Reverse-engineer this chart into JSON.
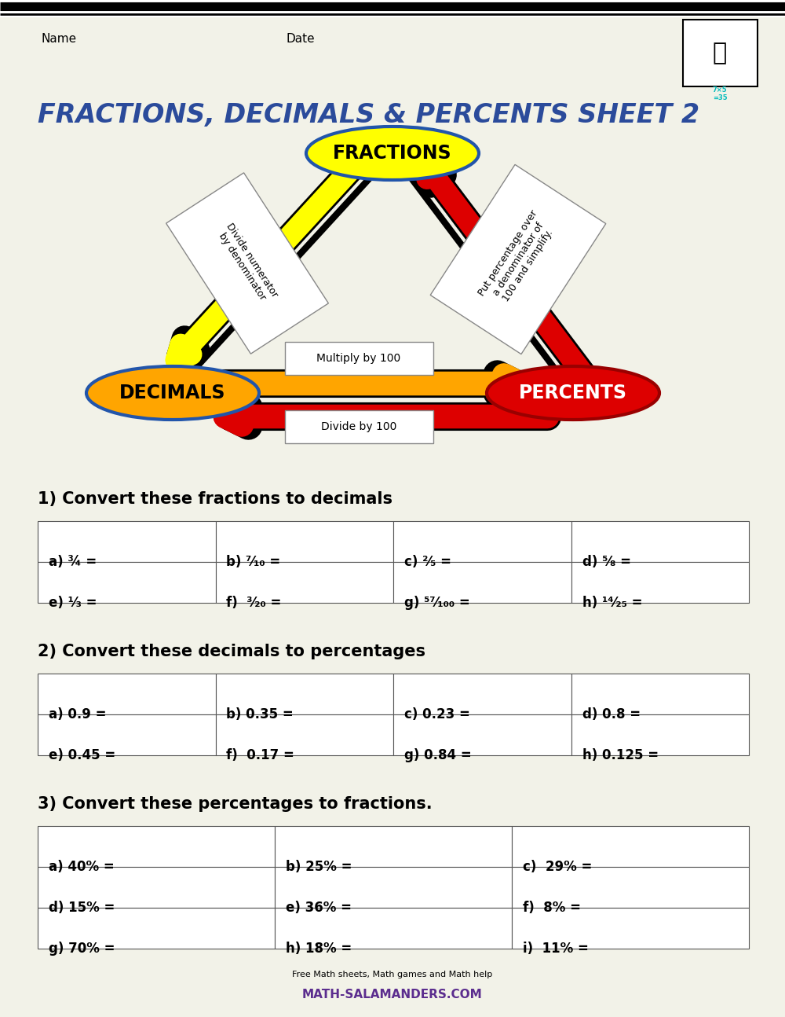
{
  "title": "FRACTIONS, DECIMALS & PERCENTS SHEET 2",
  "title_color": "#2B4B9B",
  "bg_color": "#F2F2E8",
  "name_label": "Name",
  "date_label": "Date",
  "section1_title": "1) Convert these fractions to decimals",
  "section1_rows": [
    [
      "a) ¾ =",
      "b) ⁷⁄₁₀ =",
      "c) ²⁄₅ =",
      "d) ⁵⁄₈ ="
    ],
    [
      "e) ¹⁄₃ =",
      "f)  ³⁄₂₀ =",
      "g) ⁵⁷⁄₁₀₀ =",
      "h) ¹⁴⁄₂₅ ="
    ]
  ],
  "section2_title": "2) Convert these decimals to percentages",
  "section2_rows": [
    [
      "a) 0.9 =",
      "b) 0.35 =",
      "c) 0.23 =",
      "d) 0.8 ="
    ],
    [
      "e) 0.45 =",
      "f)  0.17 =",
      "g) 0.84 =",
      "h) 0.125 ="
    ]
  ],
  "section3_title": "3) Convert these percentages to fractions.",
  "section3_rows": [
    [
      "a) 40% =",
      "b) 25% =",
      "c)  29% ="
    ],
    [
      "d) 15% =",
      "e) 36% =",
      "f)  8% ="
    ],
    [
      "g) 70% =",
      "h) 18% =",
      "i)  11% ="
    ]
  ],
  "fractions_label": "FRACTIONS",
  "decimals_label": "DECIMALS",
  "percents_label": "PERCENTS",
  "yellow_color": "#FFFF00",
  "decimals_ellipse_color": "#FFA500",
  "red_color": "#DD0000",
  "orange_color": "#FFA500",
  "multiply_label": "Multiply by 100",
  "divide_label": "Divide by 100",
  "left_arrow_text": "Divide numerator\nby denominator",
  "right_arrow_text": "Put percentage over\na denominator of\n100 and simplify."
}
